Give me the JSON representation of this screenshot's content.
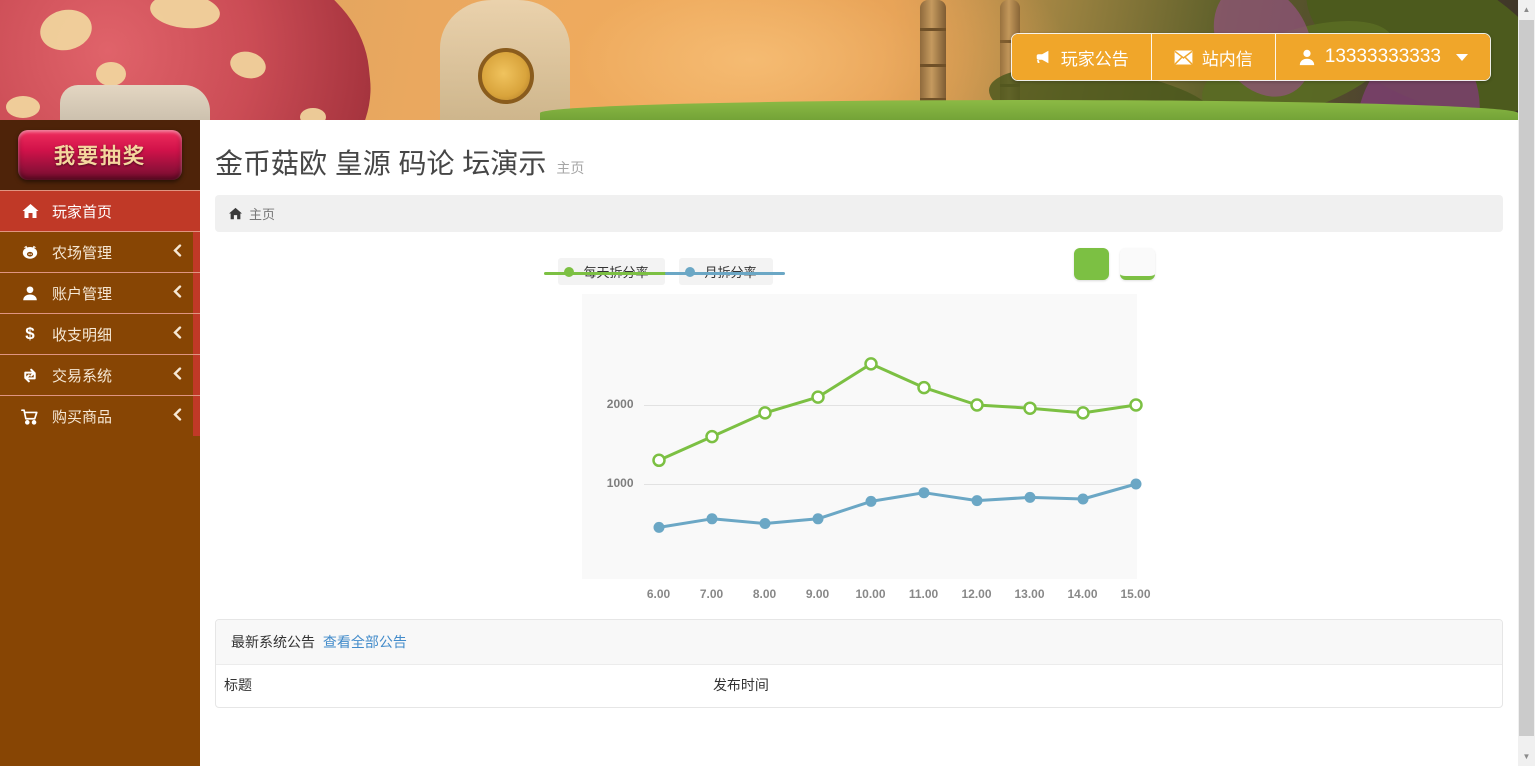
{
  "header": {
    "buttons": [
      {
        "label": "玩家公告",
        "icon": "megaphone-icon",
        "caret": false
      },
      {
        "label": "站内信",
        "icon": "envelope-icon",
        "caret": false
      },
      {
        "label": "13333333333",
        "icon": "user-icon",
        "caret": true
      }
    ]
  },
  "sidebar": {
    "lottery_button": "我要抽奖",
    "menu": [
      {
        "label": "玩家首页",
        "icon": "home-icon",
        "active": true,
        "has_submenu": false
      },
      {
        "label": "农场管理",
        "icon": "farm-icon",
        "active": false,
        "has_submenu": true
      },
      {
        "label": "账户管理",
        "icon": "account-icon",
        "active": false,
        "has_submenu": true
      },
      {
        "label": "收支明细",
        "icon": "dollar-icon",
        "active": false,
        "has_submenu": true
      },
      {
        "label": "交易系统",
        "icon": "trade-icon",
        "active": false,
        "has_submenu": true
      },
      {
        "label": "购买商品",
        "icon": "cart-icon",
        "active": false,
        "has_submenu": true
      }
    ]
  },
  "main": {
    "title": "金币菇欧 皇源 码论 坛演示",
    "subtitle": "主页",
    "breadcrumb": "主页"
  },
  "chart_data": {
    "type": "line",
    "x_tick_labels": [
      "6.00",
      "7.00",
      "8.00",
      "9.00",
      "10.00",
      "11.00",
      "12.00",
      "13.00",
      "14.00",
      "15.00"
    ],
    "series": [
      {
        "name": "每天拆分率",
        "color": "#7cc043",
        "marker": "hollow",
        "values": [
          1300,
          1600,
          1900,
          2100,
          2520,
          2220,
          2000,
          1960,
          1900,
          2000
        ]
      },
      {
        "name": "月拆分率",
        "color": "#6ba7c5",
        "marker": "solid",
        "values": [
          450,
          560,
          500,
          560,
          780,
          890,
          790,
          830,
          810,
          1000
        ]
      }
    ],
    "y_gridlines": [
      1000,
      2000
    ],
    "ylim": [
      0,
      3400
    ],
    "legend_position": "top-left",
    "grid": true,
    "plot_background": "#f9f9f9"
  },
  "announcements": {
    "heading": "最新系统公告",
    "view_all_link": "查看全部公告",
    "columns": [
      "标题",
      "发布时间"
    ],
    "rows": []
  },
  "colors": {
    "header_button_orange": "#f0a62a",
    "sidebar_brown": "#874504",
    "sidebar_dark_panel": "#4e2309",
    "menu_active_red": "#c03927",
    "lottery_red": "#d1124a",
    "link_blue": "#428bca",
    "series_green": "#7cc043",
    "series_blue": "#6ba7c5"
  }
}
